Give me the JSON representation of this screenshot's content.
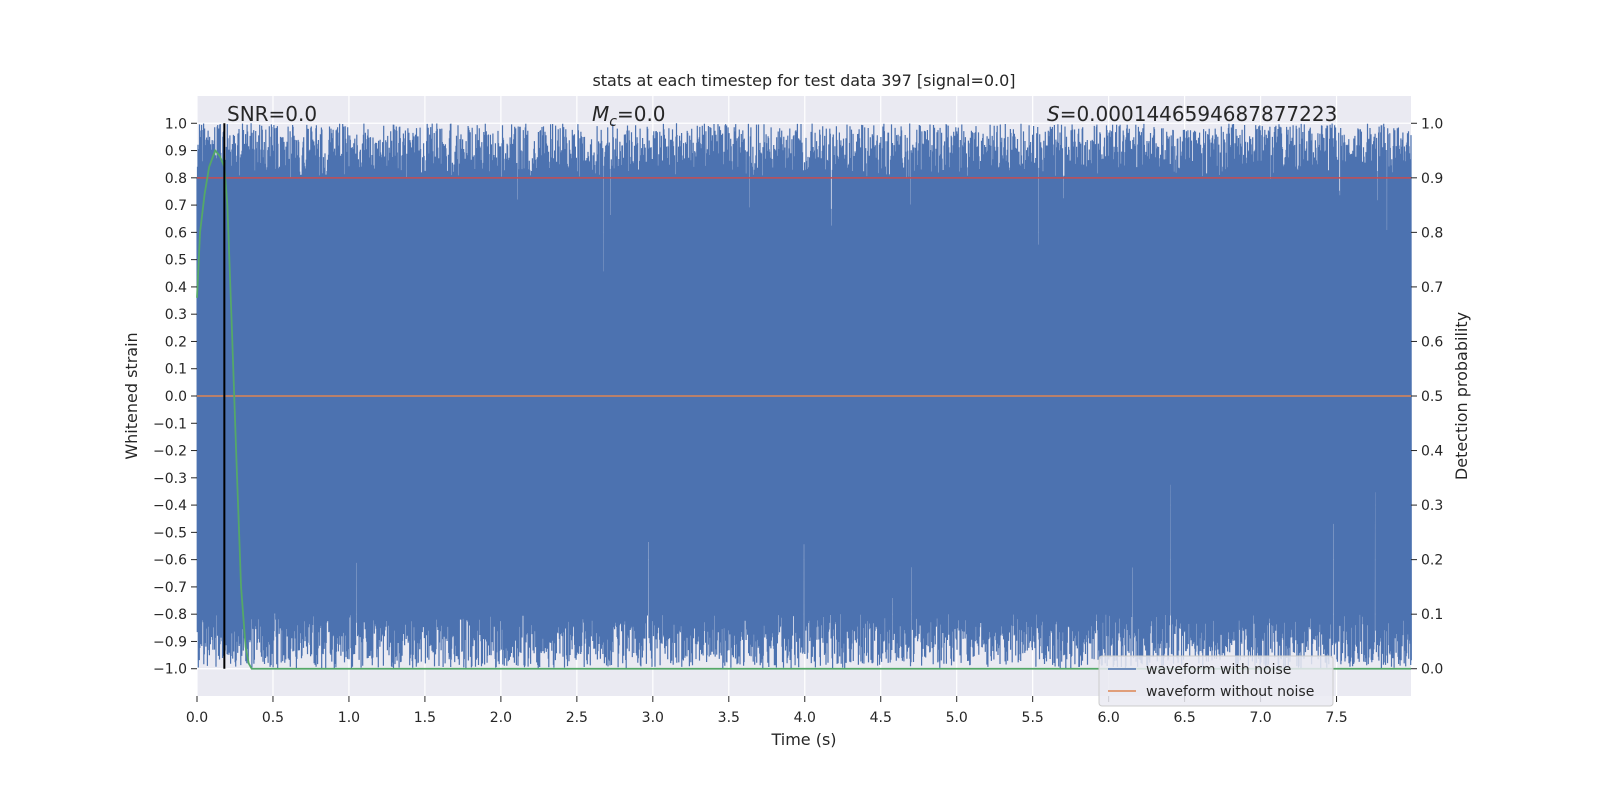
{
  "chart_data": {
    "type": "line",
    "title": "stats at each timestep for test data 397 [signal=0.0]",
    "xlabel": "Time (s)",
    "ylabel_left": "Whitened strain",
    "ylabel_right": "Detection probability",
    "xlim": [
      0.0,
      7.99
    ],
    "ylim_left": [
      -1.1,
      1.1
    ],
    "ylim_right": [
      -0.05,
      1.05
    ],
    "xticks": [
      "0.0",
      "0.5",
      "1.0",
      "1.5",
      "2.0",
      "2.5",
      "3.0",
      "3.5",
      "4.0",
      "4.5",
      "5.0",
      "5.5",
      "6.0",
      "6.5",
      "7.0",
      "7.5"
    ],
    "xtick_values": [
      0.0,
      0.5,
      1.0,
      1.5,
      2.0,
      2.5,
      3.0,
      3.5,
      4.0,
      4.5,
      5.0,
      5.5,
      6.0,
      6.5,
      7.0,
      7.5
    ],
    "yticks_left": [
      "1.0",
      "0.9",
      "0.8",
      "0.7",
      "0.6",
      "0.5",
      "0.4",
      "0.3",
      "0.2",
      "0.1",
      "0.0",
      "−0.1",
      "−0.2",
      "−0.3",
      "−0.4",
      "−0.5",
      "−0.6",
      "−0.7",
      "−0.8",
      "−0.9",
      "−1.0"
    ],
    "ytick_values_left": [
      1.0,
      0.9,
      0.8,
      0.7,
      0.6,
      0.5,
      0.4,
      0.3,
      0.2,
      0.1,
      0.0,
      -0.1,
      -0.2,
      -0.3,
      -0.4,
      -0.5,
      -0.6,
      -0.7,
      -0.8,
      -0.9,
      -1.0
    ],
    "yticks_right": [
      "1.0",
      "0.9",
      "0.8",
      "0.7",
      "0.6",
      "0.5",
      "0.4",
      "0.3",
      "0.2",
      "0.1",
      "0.0"
    ],
    "ytick_values_right": [
      1.0,
      0.9,
      0.8,
      0.7,
      0.6,
      0.5,
      0.4,
      0.3,
      0.2,
      0.1,
      0.0
    ],
    "grid": true,
    "legend_placement": "lower-right",
    "annotations": {
      "snr": "SNR=0.0",
      "mc_symbol": "M",
      "mc_subscript": "c",
      "mc_value": "=0.0",
      "s_symbol": "S",
      "s_value": "=0.0001446594687877223"
    },
    "series": [
      {
        "name": "waveform with noise",
        "axis": "left",
        "color": "#4c72b0",
        "description_values": "dense noise spanning nearly [-1.0, 1.0] over the full time range"
      },
      {
        "name": "waveform without noise",
        "axis": "left",
        "color": "#dd8452",
        "x": [
          0.0,
          7.99
        ],
        "y": [
          0.0,
          0.0
        ]
      },
      {
        "axis": "right",
        "color": "#55a868",
        "x": [
          0.0,
          0.02,
          0.05,
          0.08,
          0.12,
          0.15,
          0.18,
          0.2,
          0.23,
          0.26,
          0.29,
          0.32,
          0.34,
          0.36,
          0.38,
          0.5,
          1.0,
          2.0,
          3.0,
          4.0,
          5.0,
          6.0,
          7.0,
          7.99
        ],
        "y": [
          0.68,
          0.8,
          0.87,
          0.92,
          0.95,
          0.94,
          0.92,
          0.85,
          0.62,
          0.38,
          0.15,
          0.04,
          0.01,
          0.0,
          0.0,
          0.0,
          0.0,
          0.0,
          0.0,
          0.0,
          0.0,
          0.0,
          0.0,
          0.0
        ]
      }
    ],
    "threshold_line": {
      "axis": "right",
      "value": 0.9,
      "color": "#c44e52"
    },
    "marker_line": {
      "x": 0.18,
      "color": "#000000"
    }
  }
}
